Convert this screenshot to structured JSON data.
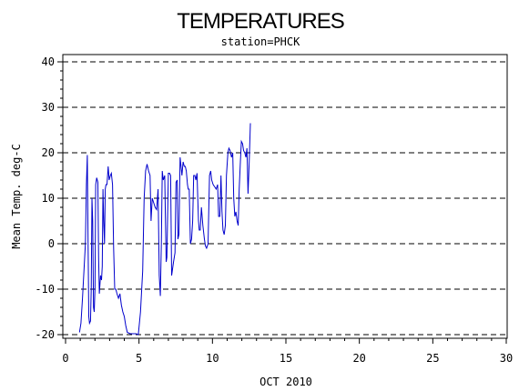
{
  "chart_data": {
    "type": "line",
    "title": "TEMPERATURES",
    "subtitle": "station=PHCK",
    "xlabel": "OCT 2010",
    "ylabel": "Mean Temp. deg-C",
    "xlim": [
      0,
      30
    ],
    "ylim": [
      -20,
      40
    ],
    "xticks": [
      0,
      5,
      10,
      15,
      20,
      25,
      30
    ],
    "yticks": [
      -20,
      -10,
      0,
      10,
      20,
      30,
      40
    ],
    "grid": "horizontal-dashed",
    "series_color": "#0000cc",
    "series": [
      {
        "points": [
          [
            0.95,
            -19.5
          ],
          [
            1.05,
            -17.5
          ],
          [
            1.15,
            -12
          ],
          [
            1.25,
            -6
          ],
          [
            1.35,
            0
          ],
          [
            1.42,
            13
          ],
          [
            1.48,
            19.5
          ],
          [
            1.53,
            1
          ],
          [
            1.58,
            -16
          ],
          [
            1.63,
            -17.5
          ],
          [
            1.7,
            -17
          ],
          [
            1.75,
            -10
          ],
          [
            1.8,
            10
          ],
          [
            1.85,
            5
          ],
          [
            1.9,
            -14
          ],
          [
            1.95,
            -15
          ],
          [
            2.0,
            -10
          ],
          [
            2.05,
            13
          ],
          [
            2.12,
            14.5
          ],
          [
            2.2,
            13.5
          ],
          [
            2.25,
            -3
          ],
          [
            2.3,
            -11
          ],
          [
            2.38,
            -7
          ],
          [
            2.45,
            -8
          ],
          [
            2.5,
            -5
          ],
          [
            2.55,
            12
          ],
          [
            2.6,
            5
          ],
          [
            2.65,
            0
          ],
          [
            2.7,
            12
          ],
          [
            2.75,
            13
          ],
          [
            2.82,
            13
          ],
          [
            2.9,
            17
          ],
          [
            2.97,
            14
          ],
          [
            3.05,
            15
          ],
          [
            3.12,
            15.5
          ],
          [
            3.2,
            13
          ],
          [
            3.27,
            -1
          ],
          [
            3.35,
            -10
          ],
          [
            3.42,
            -10
          ],
          [
            3.5,
            -11
          ],
          [
            3.6,
            -12
          ],
          [
            3.7,
            -11
          ],
          [
            3.8,
            -13.5
          ],
          [
            3.9,
            -15
          ],
          [
            4.0,
            -16
          ],
          [
            4.1,
            -18
          ],
          [
            4.2,
            -19.5
          ],
          [
            4.4,
            -19.8
          ],
          [
            4.6,
            -19.8
          ],
          [
            4.8,
            -19.8
          ],
          [
            4.95,
            -20
          ],
          [
            5.1,
            -15
          ],
          [
            5.25,
            -6
          ],
          [
            5.35,
            10
          ],
          [
            5.45,
            16
          ],
          [
            5.55,
            17.5
          ],
          [
            5.65,
            16
          ],
          [
            5.75,
            15
          ],
          [
            5.82,
            5
          ],
          [
            5.9,
            10
          ],
          [
            6.0,
            9
          ],
          [
            6.1,
            8
          ],
          [
            6.2,
            7.5
          ],
          [
            6.3,
            12
          ],
          [
            6.38,
            -7
          ],
          [
            6.45,
            -11.5
          ],
          [
            6.52,
            0
          ],
          [
            6.58,
            16
          ],
          [
            6.65,
            14
          ],
          [
            6.75,
            15
          ],
          [
            6.85,
            -4
          ],
          [
            6.9,
            -3
          ],
          [
            7.0,
            15.5
          ],
          [
            7.08,
            15.5
          ],
          [
            7.15,
            15
          ],
          [
            7.22,
            -7
          ],
          [
            7.35,
            -4
          ],
          [
            7.45,
            -2
          ],
          [
            7.52,
            13.5
          ],
          [
            7.6,
            14
          ],
          [
            7.65,
            1
          ],
          [
            7.72,
            2
          ],
          [
            7.8,
            19
          ],
          [
            7.85,
            17.5
          ],
          [
            7.92,
            15
          ],
          [
            8.0,
            18
          ],
          [
            8.08,
            17
          ],
          [
            8.15,
            17
          ],
          [
            8.22,
            16
          ],
          [
            8.3,
            13
          ],
          [
            8.35,
            12
          ],
          [
            8.42,
            12
          ],
          [
            8.5,
            0
          ],
          [
            8.58,
            1
          ],
          [
            8.65,
            5
          ],
          [
            8.72,
            15
          ],
          [
            8.8,
            15
          ],
          [
            8.87,
            14
          ],
          [
            8.95,
            15.5
          ],
          [
            9.0,
            10
          ],
          [
            9.05,
            5
          ],
          [
            9.1,
            3
          ],
          [
            9.17,
            3
          ],
          [
            9.25,
            8
          ],
          [
            9.35,
            4
          ],
          [
            9.45,
            1
          ],
          [
            9.52,
            -0.5
          ],
          [
            9.6,
            -1
          ],
          [
            9.7,
            0
          ],
          [
            9.8,
            15
          ],
          [
            9.88,
            16
          ],
          [
            9.95,
            14
          ],
          [
            10.05,
            13
          ],
          [
            10.15,
            12.5
          ],
          [
            10.25,
            12
          ],
          [
            10.35,
            13
          ],
          [
            10.42,
            6
          ],
          [
            10.5,
            6
          ],
          [
            10.58,
            15
          ],
          [
            10.65,
            7
          ],
          [
            10.72,
            3
          ],
          [
            10.8,
            2
          ],
          [
            10.88,
            4
          ],
          [
            10.95,
            15
          ],
          [
            11.05,
            20
          ],
          [
            11.12,
            21
          ],
          [
            11.2,
            20.5
          ],
          [
            11.3,
            19
          ],
          [
            11.38,
            20
          ],
          [
            11.45,
            10
          ],
          [
            11.52,
            6
          ],
          [
            11.6,
            7
          ],
          [
            11.68,
            5
          ],
          [
            11.75,
            4
          ],
          [
            11.82,
            12
          ],
          [
            11.9,
            18
          ],
          [
            11.97,
            22.5
          ],
          [
            12.05,
            22
          ],
          [
            12.12,
            20.5
          ],
          [
            12.2,
            20
          ],
          [
            12.28,
            19
          ],
          [
            12.35,
            21
          ],
          [
            12.42,
            11
          ],
          [
            12.5,
            18
          ],
          [
            12.58,
            26.5
          ]
        ]
      }
    ]
  }
}
